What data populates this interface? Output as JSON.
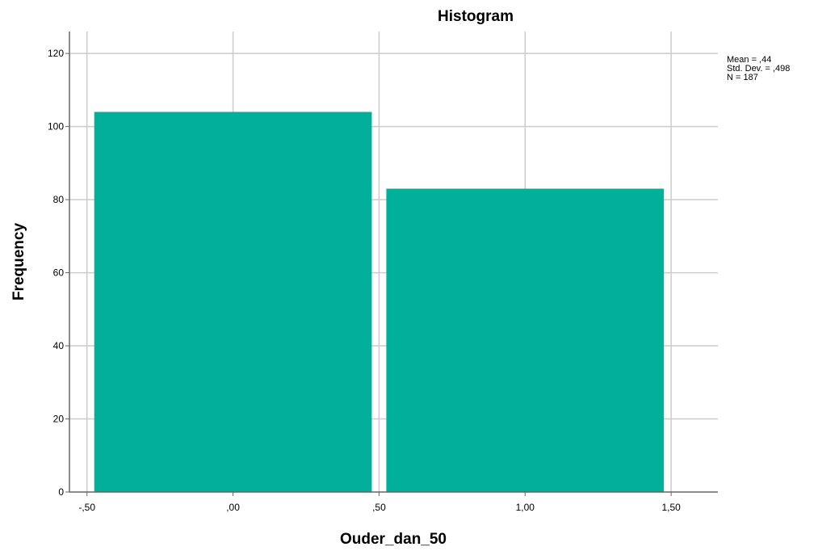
{
  "chart_data": {
    "type": "histogram",
    "title": "Histogram",
    "xlabel": "Ouder_dan_50",
    "ylabel": "Frequency",
    "bins": [
      {
        "from": -0.5,
        "to": 0.5,
        "count": 104
      },
      {
        "from": 0.5,
        "to": 1.5,
        "count": 83
      }
    ],
    "xlim": [
      -0.56,
      1.66
    ],
    "ylim": [
      0,
      126
    ],
    "x_ticks": [
      {
        "value": -0.5,
        "label": "-,50"
      },
      {
        "value": 0.0,
        "label": ",00"
      },
      {
        "value": 0.5,
        "label": ",50"
      },
      {
        "value": 1.0,
        "label": "1,00"
      },
      {
        "value": 1.5,
        "label": "1,50"
      }
    ],
    "y_ticks": [
      {
        "value": 0,
        "label": "0"
      },
      {
        "value": 20,
        "label": "20"
      },
      {
        "value": 40,
        "label": "40"
      },
      {
        "value": 60,
        "label": "60"
      },
      {
        "value": 80,
        "label": "80"
      },
      {
        "value": 100,
        "label": "100"
      },
      {
        "value": 120,
        "label": "120"
      }
    ],
    "grid": true,
    "bar_color": "#00b09b",
    "grid_color": "#cccccc",
    "axis_color": "#666666"
  },
  "stats": {
    "mean": "Mean = ,44",
    "std": "Std. Dev. = ,498",
    "n": "N = 187"
  }
}
